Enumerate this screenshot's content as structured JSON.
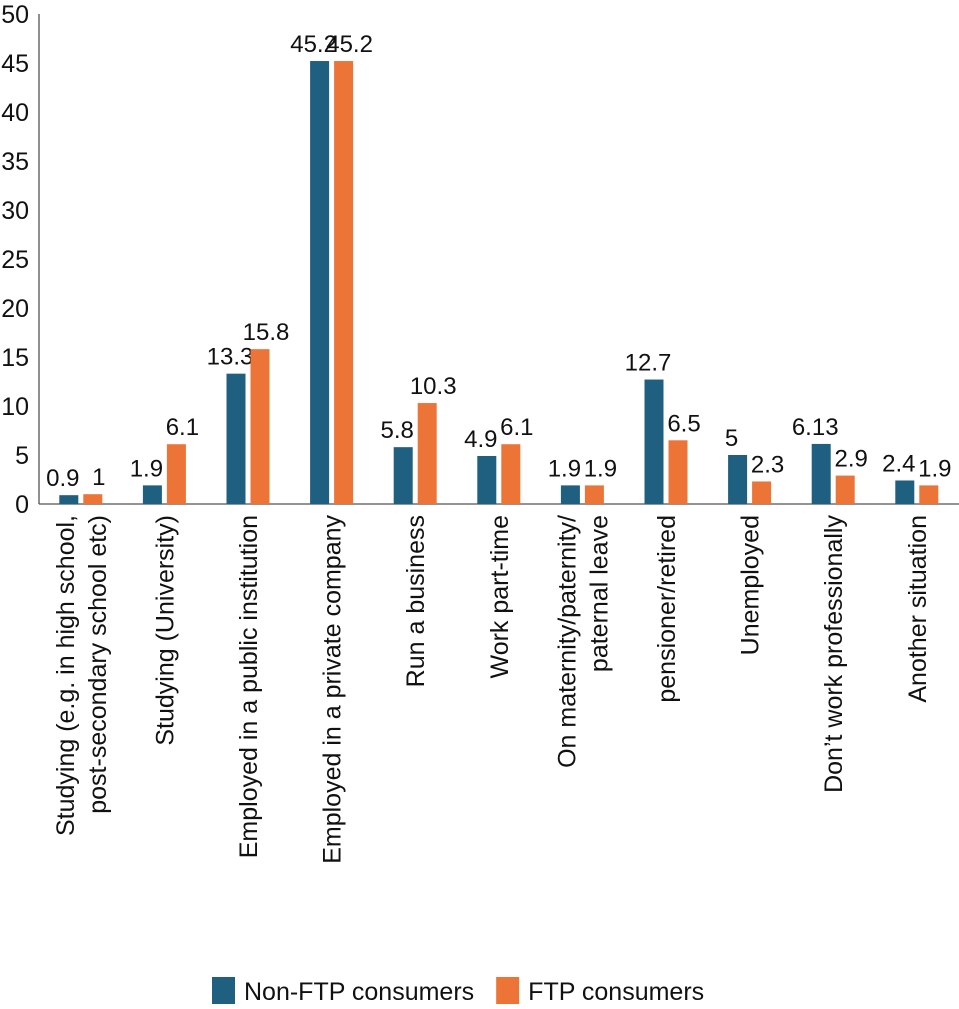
{
  "chart_data": {
    "type": "bar",
    "title": "",
    "xlabel": "",
    "ylabel": "",
    "ylim": [
      0,
      50
    ],
    "yticks": [
      0,
      5,
      10,
      15,
      20,
      25,
      30,
      35,
      40,
      45,
      50
    ],
    "grid": false,
    "legend_position": "bottom",
    "categories": [
      [
        "Studying (e.g. in high school,",
        "post-secondary school etc)"
      ],
      [
        "Studying (University)"
      ],
      [
        "Employed in a public institution"
      ],
      [
        "Employed in a private company"
      ],
      [
        "Run a business"
      ],
      [
        "Work part-time"
      ],
      [
        "On maternity/paternity/",
        "paternal leave"
      ],
      [
        "pensioner/retired"
      ],
      [
        "Unemployed"
      ],
      [
        "Don’t work professionally"
      ],
      [
        "Another situation"
      ]
    ],
    "series": [
      {
        "name": "Non-FTP consumers",
        "color": "#1f5f80",
        "values": [
          0.9,
          1.9,
          13.3,
          45.2,
          5.8,
          4.9,
          1.9,
          12.7,
          5,
          6.13,
          2.4
        ],
        "labels": [
          "0.9",
          "1.9",
          "13.3",
          "45.2",
          "5.8",
          "4.9",
          "1.9",
          "12.7",
          "5",
          "6.13",
          "2.4"
        ]
      },
      {
        "name": "FTP consumers",
        "color": "#ec7436",
        "values": [
          1,
          6.1,
          15.8,
          45.2,
          10.3,
          6.1,
          1.9,
          6.5,
          2.3,
          2.9,
          1.9
        ],
        "labels": [
          "1",
          "6.1",
          "15.8",
          "45.2",
          "10.3",
          "6.1",
          "1.9",
          "6.5",
          "2.3",
          "2.9",
          "1.9"
        ]
      }
    ]
  }
}
